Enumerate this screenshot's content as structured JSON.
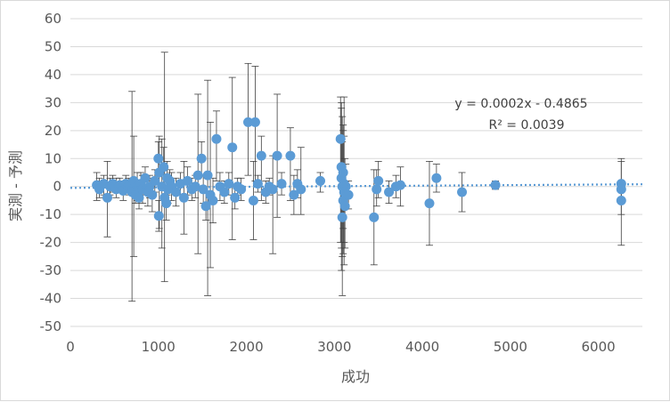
{
  "chart_data": {
    "type": "scatter",
    "xlabel": "成功",
    "ylabel": "実測 - 予測",
    "xlim": [
      0,
      6500
    ],
    "ylim": [
      -50,
      60
    ],
    "x_ticks": [
      "0",
      "1000",
      "2000",
      "3000",
      "4000",
      "5000",
      "6000"
    ],
    "y_ticks": [
      "60",
      "50",
      "40",
      "30",
      "20",
      "10",
      "0",
      "-10",
      "-20",
      "-30",
      "-40",
      "-50"
    ],
    "grid": "horizontal",
    "trendline": {
      "type": "linear",
      "slope": 0.0002,
      "intercept": -0.4865
    },
    "equation_label": "y = 0.0002x - 0.4865",
    "r2_label": "R² = 0.0039",
    "colors": {
      "marker": "#5b9bd5",
      "trend": "#5b9bd5",
      "error_bar": "#404040",
      "grid": "#d9d9d9"
    },
    "points": [
      {
        "x": 300,
        "y": 0.5,
        "lo": -5,
        "hi": 5
      },
      {
        "x": 330,
        "y": -1,
        "lo": -4,
        "hi": 3
      },
      {
        "x": 380,
        "y": 1,
        "lo": -3,
        "hi": 4
      },
      {
        "x": 420,
        "y": -4,
        "lo": -18,
        "hi": 9
      },
      {
        "x": 450,
        "y": 0,
        "lo": -3,
        "hi": 3
      },
      {
        "x": 480,
        "y": 1,
        "lo": -2,
        "hi": 4
      },
      {
        "x": 520,
        "y": -1,
        "lo": -4,
        "hi": 3
      },
      {
        "x": 560,
        "y": 0.5,
        "lo": -2,
        "hi": 3
      },
      {
        "x": 600,
        "y": -1.5,
        "lo": -5,
        "hi": 2
      },
      {
        "x": 630,
        "y": 1,
        "lo": -2,
        "hi": 4
      },
      {
        "x": 660,
        "y": 0,
        "lo": -3,
        "hi": 3
      },
      {
        "x": 700,
        "y": -2,
        "lo": -41,
        "hi": 34
      },
      {
        "x": 720,
        "y": 2,
        "lo": -25,
        "hi": 18
      },
      {
        "x": 740,
        "y": -3,
        "lo": -6,
        "hi": 1
      },
      {
        "x": 760,
        "y": 0,
        "lo": -5,
        "hi": 5
      },
      {
        "x": 780,
        "y": -4,
        "lo": -8,
        "hi": 0
      },
      {
        "x": 800,
        "y": 1,
        "lo": -3,
        "hi": 5
      },
      {
        "x": 820,
        "y": -1,
        "lo": -6,
        "hi": 4
      },
      {
        "x": 850,
        "y": 3,
        "lo": -1,
        "hi": 7
      },
      {
        "x": 880,
        "y": -2,
        "lo": -7,
        "hi": 3
      },
      {
        "x": 900,
        "y": 0,
        "lo": -4,
        "hi": 4
      },
      {
        "x": 930,
        "y": -3,
        "lo": -9,
        "hi": 3
      },
      {
        "x": 960,
        "y": 2,
        "lo": -2,
        "hi": 6
      },
      {
        "x": 1000,
        "y": 10,
        "lo": 4,
        "hi": 16
      },
      {
        "x": 1005,
        "y": -10.5,
        "lo": -16,
        "hi": -5
      },
      {
        "x": 1010,
        "y": 5,
        "lo": -15,
        "hi": 18
      },
      {
        "x": 1040,
        "y": 0,
        "lo": -22,
        "hi": 17
      },
      {
        "x": 1060,
        "y": 7,
        "lo": -1,
        "hi": 14
      },
      {
        "x": 1070,
        "y": -4,
        "lo": -34,
        "hi": 48
      },
      {
        "x": 1090,
        "y": -6,
        "lo": -12,
        "hi": 0
      },
      {
        "x": 1100,
        "y": 3,
        "lo": -3,
        "hi": 9
      },
      {
        "x": 1110,
        "y": -1,
        "lo": -6,
        "hi": 4
      },
      {
        "x": 1130,
        "y": 2,
        "lo": -2,
        "hi": 6
      },
      {
        "x": 1150,
        "y": 0,
        "lo": -5,
        "hi": 5
      },
      {
        "x": 1200,
        "y": -2,
        "lo": -7,
        "hi": 3
      },
      {
        "x": 1250,
        "y": 1,
        "lo": -3,
        "hi": 5
      },
      {
        "x": 1290,
        "y": -4,
        "lo": -17,
        "hi": 9
      },
      {
        "x": 1330,
        "y": 2,
        "lo": -3,
        "hi": 7
      },
      {
        "x": 1380,
        "y": -1,
        "lo": -5,
        "hi": 3
      },
      {
        "x": 1420,
        "y": 0,
        "lo": -4,
        "hi": 4
      },
      {
        "x": 1450,
        "y": 4,
        "lo": -24,
        "hi": 33
      },
      {
        "x": 1490,
        "y": 10,
        "lo": 4,
        "hi": 16
      },
      {
        "x": 1510,
        "y": -1,
        "lo": -6,
        "hi": 4
      },
      {
        "x": 1540,
        "y": -7,
        "lo": -12,
        "hi": -2
      },
      {
        "x": 1560,
        "y": 4,
        "lo": -39,
        "hi": 38
      },
      {
        "x": 1590,
        "y": -3,
        "lo": -29,
        "hi": 23
      },
      {
        "x": 1620,
        "y": -5,
        "lo": -13,
        "hi": 3
      },
      {
        "x": 1660,
        "y": 17,
        "lo": 2,
        "hi": 27
      },
      {
        "x": 1700,
        "y": 0,
        "lo": -5,
        "hi": 5
      },
      {
        "x": 1750,
        "y": -2,
        "lo": -6,
        "hi": 2
      },
      {
        "x": 1800,
        "y": 1,
        "lo": -3,
        "hi": 5
      },
      {
        "x": 1840,
        "y": 14,
        "lo": -19,
        "hi": 39
      },
      {
        "x": 1870,
        "y": -4,
        "lo": -8,
        "hi": 0
      },
      {
        "x": 1900,
        "y": 0,
        "lo": -3,
        "hi": 3
      },
      {
        "x": 1940,
        "y": -1,
        "lo": -5,
        "hi": 3
      },
      {
        "x": 2020,
        "y": 23,
        "lo": 4,
        "hi": 44
      },
      {
        "x": 2080,
        "y": -5,
        "lo": -19,
        "hi": 9
      },
      {
        "x": 2100,
        "y": 23,
        "lo": 2,
        "hi": 43
      },
      {
        "x": 2130,
        "y": 1,
        "lo": -2,
        "hi": 4
      },
      {
        "x": 2170,
        "y": 11,
        "lo": -5,
        "hi": 18
      },
      {
        "x": 2220,
        "y": -2,
        "lo": -6,
        "hi": 2
      },
      {
        "x": 2260,
        "y": 0,
        "lo": -3,
        "hi": 3
      },
      {
        "x": 2300,
        "y": -1,
        "lo": -24,
        "hi": 11
      },
      {
        "x": 2350,
        "y": 11,
        "lo": -11,
        "hi": 33
      },
      {
        "x": 2400,
        "y": 1,
        "lo": -3,
        "hi": 5
      },
      {
        "x": 2500,
        "y": 11,
        "lo": -5,
        "hi": 21
      },
      {
        "x": 2540,
        "y": -3,
        "lo": -10,
        "hi": 4
      },
      {
        "x": 2580,
        "y": 1,
        "lo": -4,
        "hi": 6
      },
      {
        "x": 2620,
        "y": -1,
        "lo": -10,
        "hi": 14
      },
      {
        "x": 2840,
        "y": 2,
        "lo": -2,
        "hi": 5
      },
      {
        "x": 3070,
        "y": 17,
        "lo": -20,
        "hi": 32
      },
      {
        "x": 3080,
        "y": 7,
        "lo": -22,
        "hi": 28
      },
      {
        "x": 3080,
        "y": 3,
        "lo": -30,
        "hi": 30
      },
      {
        "x": 3090,
        "y": -11,
        "lo": -39,
        "hi": 16
      },
      {
        "x": 3090,
        "y": 0,
        "lo": -25,
        "hi": 25
      },
      {
        "x": 3100,
        "y": -5,
        "lo": -24,
        "hi": 22
      },
      {
        "x": 3100,
        "y": 5,
        "lo": -15,
        "hi": 20
      },
      {
        "x": 3110,
        "y": -2,
        "lo": -20,
        "hi": 18
      },
      {
        "x": 3110,
        "y": 1,
        "lo": -28,
        "hi": 32
      },
      {
        "x": 3120,
        "y": -7,
        "lo": -22,
        "hi": 10
      },
      {
        "x": 3130,
        "y": 0,
        "lo": -8,
        "hi": 8
      },
      {
        "x": 3160,
        "y": -3,
        "lo": -8,
        "hi": 2
      },
      {
        "x": 3450,
        "y": -11,
        "lo": -28,
        "hi": 6
      },
      {
        "x": 3480,
        "y": -1,
        "lo": -7,
        "hi": 6
      },
      {
        "x": 3500,
        "y": 2,
        "lo": -4,
        "hi": 9
      },
      {
        "x": 3620,
        "y": -2,
        "lo": -6,
        "hi": 2
      },
      {
        "x": 3700,
        "y": 0,
        "lo": -4,
        "hi": 4
      },
      {
        "x": 3750,
        "y": 0.5,
        "lo": -7,
        "hi": 7
      },
      {
        "x": 4080,
        "y": -6,
        "lo": -21,
        "hi": 9
      },
      {
        "x": 4160,
        "y": 3,
        "lo": -2,
        "hi": 8
      },
      {
        "x": 4450,
        "y": -2,
        "lo": -9,
        "hi": 5
      },
      {
        "x": 4830,
        "y": 0.5,
        "lo": -1,
        "hi": 2
      },
      {
        "x": 6260,
        "y": 1,
        "lo": -6,
        "hi": 10
      },
      {
        "x": 6260,
        "y": -1,
        "lo": -21,
        "hi": 9
      },
      {
        "x": 6260,
        "y": -5,
        "lo": -10,
        "hi": 0
      }
    ]
  }
}
